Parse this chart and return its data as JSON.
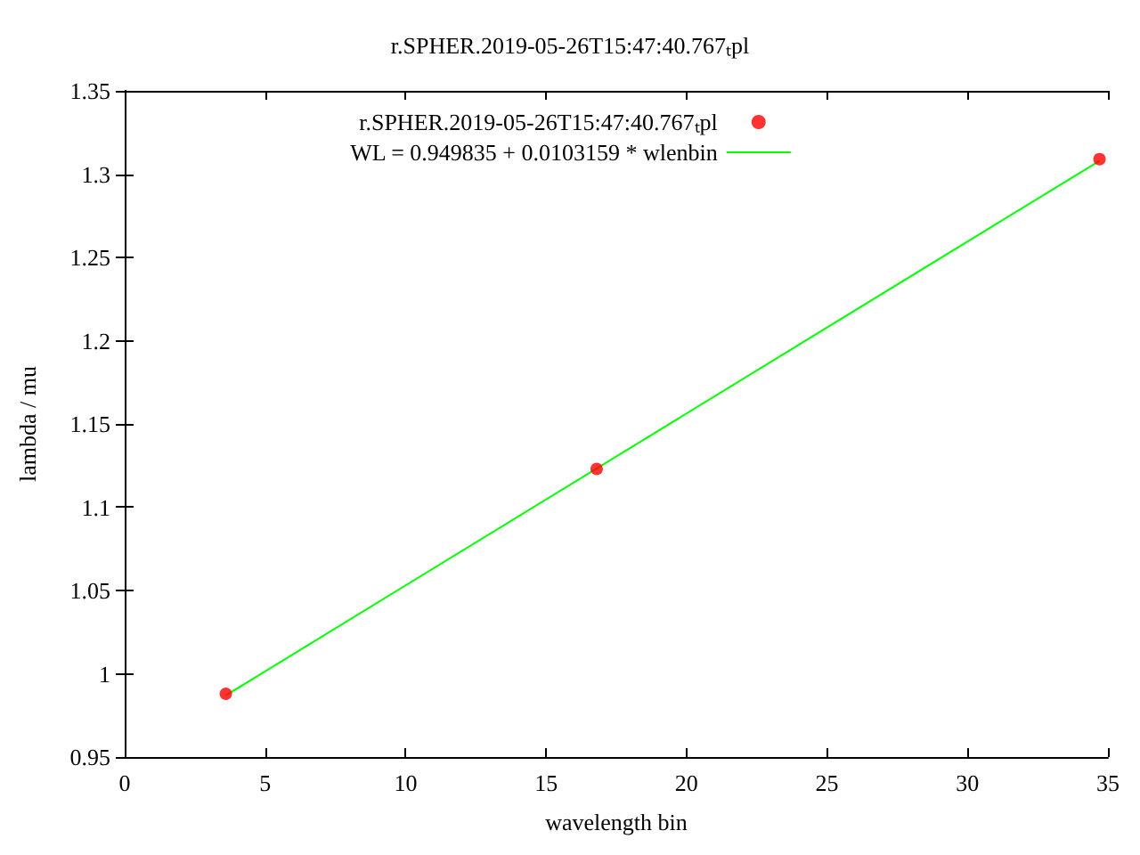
{
  "chart_data": {
    "type": "scatter",
    "title": "r.SPHER.2019-05-26T15:47:40.767ₜpl",
    "xlabel": "wavelength bin",
    "ylabel": "lambda / mu",
    "series": [
      {
        "name": "r.SPHER.2019-05-26T15:47:40.767ₜpl",
        "color": "#ff0000",
        "marker": "circle",
        "x": [
          3.6,
          16.8,
          34.7
        ],
        "values": [
          0.988,
          1.123,
          1.309
        ]
      },
      {
        "type": "line",
        "name": "WL = 0.949835 + 0.0103159 * wlenbin",
        "color": "#00ff00",
        "marker": "none",
        "x": [
          3.6,
          34.7
        ],
        "values": [
          0.987,
          1.308
        ]
      }
    ],
    "xlim": [
      0,
      35
    ],
    "xticks": [
      0,
      5,
      10,
      15,
      20,
      25,
      30,
      35
    ],
    "ylim": [
      0.95,
      1.35
    ],
    "yticks": [
      0.95,
      1,
      1.05,
      1.1,
      1.15,
      1.2,
      1.25,
      1.3,
      1.35
    ],
    "grid": false,
    "legend": "top"
  }
}
